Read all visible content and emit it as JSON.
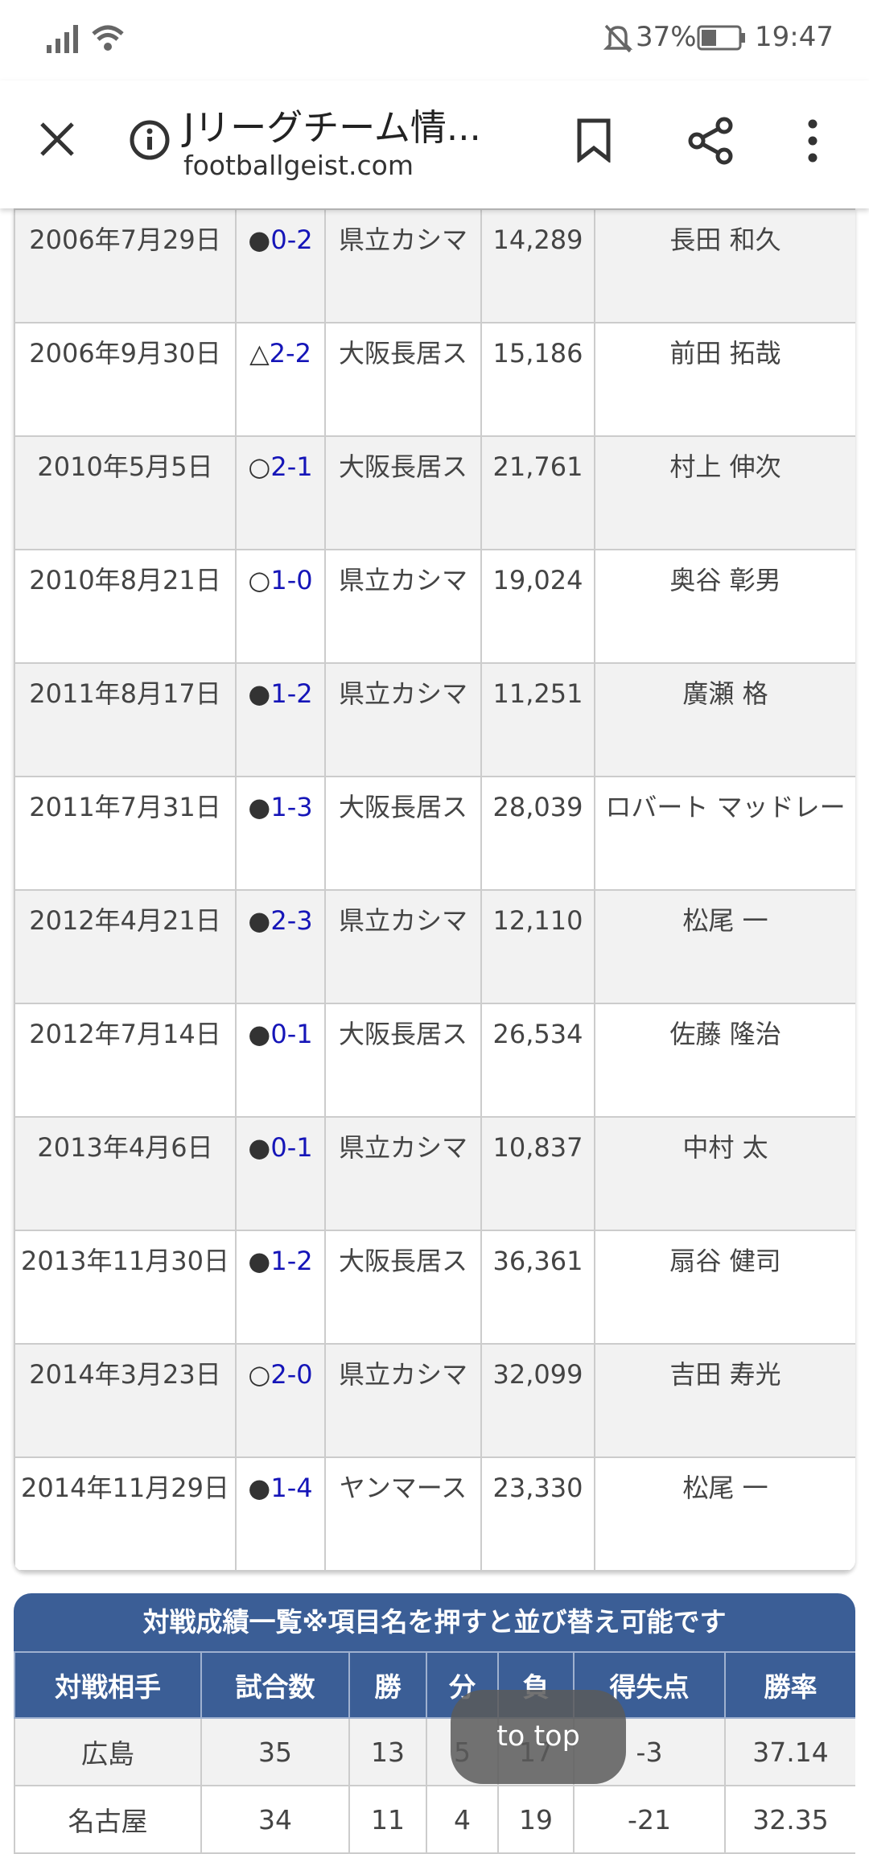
{
  "status_bar": {
    "battery": "37%",
    "time": "19:47"
  },
  "toolbar": {
    "title": "Jリーグチーム情...",
    "url": "footballgeist.com"
  },
  "match_table": {
    "rows": [
      {
        "date": "2006年7月29日",
        "result": "●",
        "score": "0-2",
        "stadium": "県立カシマ",
        "attendance": "14,289",
        "referee": "長田 和久"
      },
      {
        "date": "2006年9月30日",
        "result": "△",
        "score": "2-2",
        "stadium": "大阪長居ス",
        "attendance": "15,186",
        "referee": "前田 拓哉"
      },
      {
        "date": "2010年5月5日",
        "result": "○",
        "score": "2-1",
        "stadium": "大阪長居ス",
        "attendance": "21,761",
        "referee": "村上 伸次"
      },
      {
        "date": "2010年8月21日",
        "result": "○",
        "score": "1-0",
        "stadium": "県立カシマ",
        "attendance": "19,024",
        "referee": "奥谷 彰男"
      },
      {
        "date": "2011年8月17日",
        "result": "●",
        "score": "1-2",
        "stadium": "県立カシマ",
        "attendance": "11,251",
        "referee": "廣瀬 格"
      },
      {
        "date": "2011年7月31日",
        "result": "●",
        "score": "1-3",
        "stadium": "大阪長居ス",
        "attendance": "28,039",
        "referee": "ロバート マッドレー"
      },
      {
        "date": "2012年4月21日",
        "result": "●",
        "score": "2-3",
        "stadium": "県立カシマ",
        "attendance": "12,110",
        "referee": "松尾 一"
      },
      {
        "date": "2012年7月14日",
        "result": "●",
        "score": "0-1",
        "stadium": "大阪長居ス",
        "attendance": "26,534",
        "referee": "佐藤 隆治"
      },
      {
        "date": "2013年4月6日",
        "result": "●",
        "score": "0-1",
        "stadium": "県立カシマ",
        "attendance": "10,837",
        "referee": "中村 太"
      },
      {
        "date": "2013年11月30日",
        "result": "●",
        "score": "1-2",
        "stadium": "大阪長居ス",
        "attendance": "36,361",
        "referee": "扇谷 健司"
      },
      {
        "date": "2014年3月23日",
        "result": "○",
        "score": "2-0",
        "stadium": "県立カシマ",
        "attendance": "32,099",
        "referee": "吉田 寿光"
      },
      {
        "date": "2014年11月29日",
        "result": "●",
        "score": "1-4",
        "stadium": "ヤンマース",
        "attendance": "23,330",
        "referee": "松尾 一"
      }
    ]
  },
  "record_table": {
    "caption": "対戦成績一覧※項目名を押すと並び替え可能です",
    "headers": [
      "対戦相手",
      "試合数",
      "勝",
      "分",
      "負",
      "得失点",
      "勝率"
    ],
    "rows": [
      [
        "広島",
        "35",
        "13",
        "5",
        "17",
        "-3",
        "37.14"
      ],
      [
        "名古屋",
        "34",
        "11",
        "4",
        "19",
        "-21",
        "32.35"
      ]
    ]
  },
  "toast": {
    "label": "to top"
  }
}
